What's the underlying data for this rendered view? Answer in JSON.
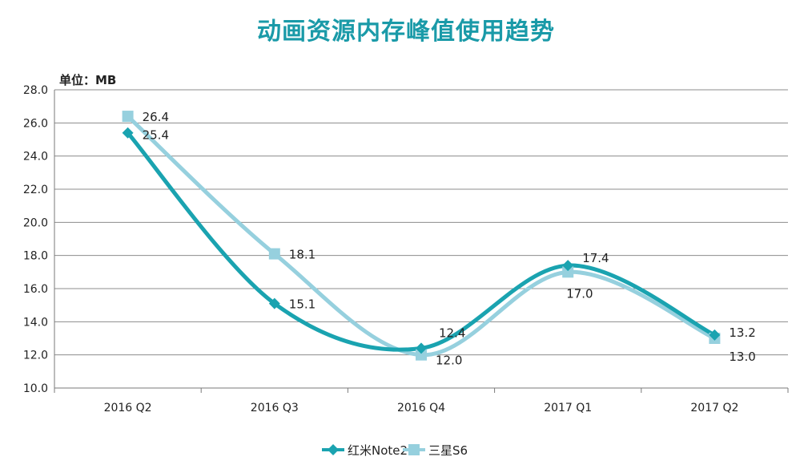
{
  "chart_data": {
    "type": "line",
    "title": "动画资源内存峰值使用趋势",
    "unit_label": "单位：MB",
    "categories": [
      "2016 Q2",
      "2016 Q3",
      "2016 Q4",
      "2017 Q1",
      "2017 Q2"
    ],
    "ylim": [
      10.0,
      28.0
    ],
    "yticks": [
      10.0,
      12.0,
      14.0,
      16.0,
      18.0,
      20.0,
      22.0,
      24.0,
      26.0,
      28.0
    ],
    "grid": true,
    "smooth": true,
    "legend_position": "bottom",
    "series": [
      {
        "name": "红米Note2",
        "values": [
          25.4,
          15.1,
          12.4,
          17.4,
          13.2
        ],
        "color": "#1aa3b0",
        "marker": "diamond"
      },
      {
        "name": "三星S6",
        "values": [
          26.4,
          18.1,
          12.0,
          17.0,
          13.0
        ],
        "color": "#96d0de",
        "marker": "square"
      }
    ]
  }
}
